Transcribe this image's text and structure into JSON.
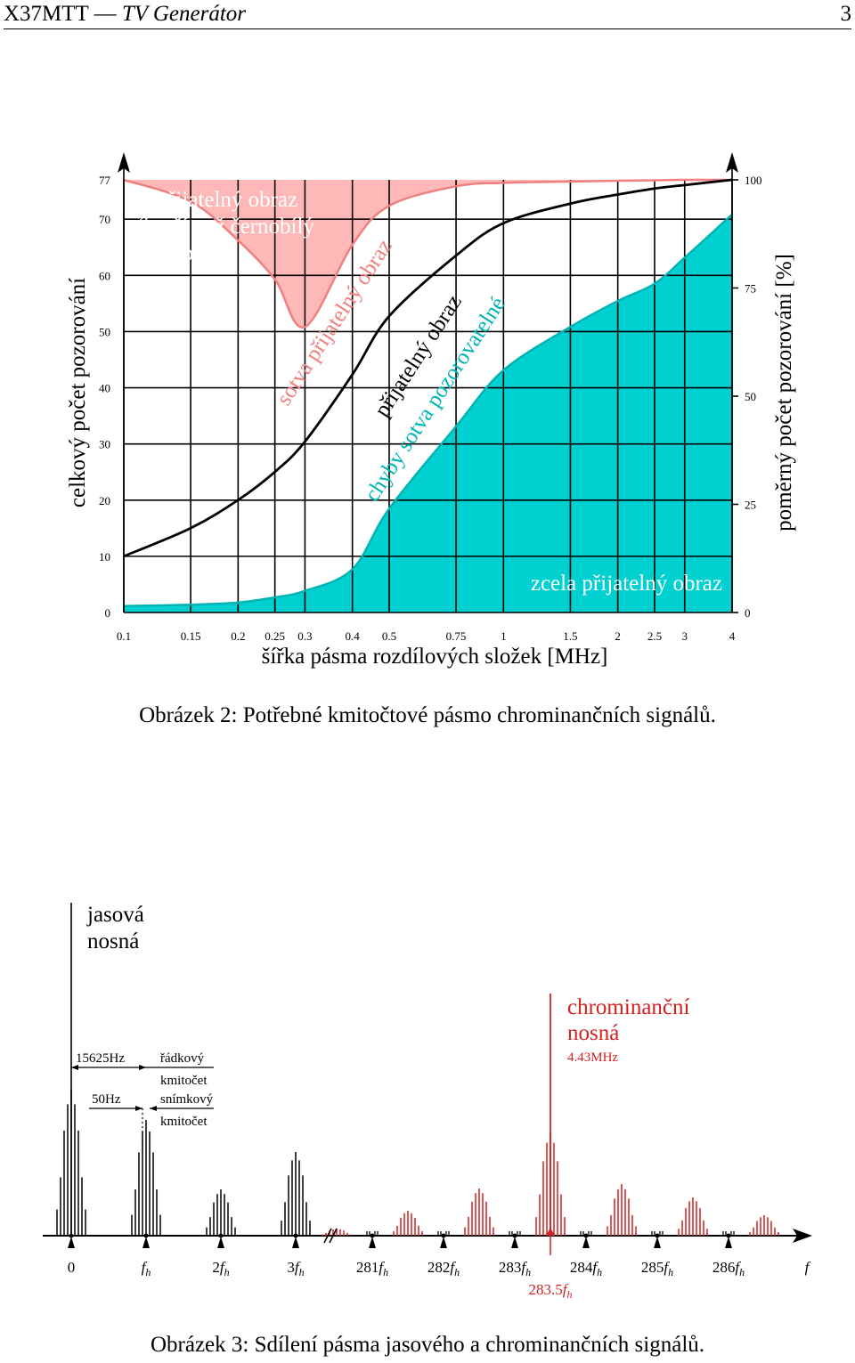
{
  "header": {
    "course": "X37MTT",
    "dash": "—",
    "title": "TV Generátor",
    "page_number": "3"
  },
  "figure2": {
    "caption": "Obrázek 2: Potřebné kmitočtové pásmo chrominančních signálů.",
    "region_labels": {
      "unacceptable_line1": "nepřijatelný obraz",
      "unacceptable_line2": "(horší než černobílý",
      "unacceptable_line3": "TV obraz)",
      "barely_acceptable": "sotva přijatelný obraz",
      "acceptable": "přijatelný obraz",
      "barely_noticeable": "chyby sotva pozorovatelné",
      "fully_acceptable": "zcela přijatelný obraz"
    },
    "colors": {
      "red_region": "#ffb8b8",
      "red_line": "#f08080",
      "cyan_region": "#00d0d0",
      "cyan_line": "#00b4b4"
    },
    "chart_data": {
      "type": "area",
      "xlabel": "šířka pásma rozdílových složek [MHz]",
      "ylabel_left": "celkový počet pozorování",
      "ylabel_right": "poměrný počet pozorování [%]",
      "x_scale": "log",
      "x_ticks": [
        "0.1",
        "0.15",
        "0.2",
        "0.25",
        "0.3",
        "0.4",
        "0.5",
        "0.75",
        "1",
        "1.5",
        "2",
        "2.5",
        "3",
        "4"
      ],
      "x_tick_values": [
        0.1,
        0.15,
        0.2,
        0.25,
        0.3,
        0.4,
        0.5,
        0.75,
        1,
        1.5,
        2,
        2.5,
        3,
        4
      ],
      "y_left_ticks": [
        "0",
        "10",
        "20",
        "30",
        "40",
        "50",
        "60",
        "70",
        "77"
      ],
      "y_left_tick_values": [
        0,
        10,
        20,
        30,
        40,
        50,
        60,
        70,
        77
      ],
      "y_right_ticks": [
        "0",
        "25",
        "50",
        "75",
        "100"
      ],
      "y_right_tick_values": [
        0,
        25,
        50,
        75,
        100
      ],
      "ylim_left": [
        0,
        77
      ],
      "ylim_right": [
        0,
        100
      ],
      "grid": true,
      "series": [
        {
          "name": "nepřijatelný obraz",
          "x": [
            0.1,
            0.15,
            0.2,
            0.25,
            0.3,
            0.4,
            0.5,
            0.75,
            1,
            1.5,
            2,
            2.5,
            3,
            4
          ],
          "y": [
            100,
            95,
            86,
            77,
            66,
            85,
            94,
            98.5,
            99.3,
            99.6,
            99.8,
            99.9,
            100,
            100
          ]
        },
        {
          "name": "přijatelný obraz",
          "x": [
            0.1,
            0.15,
            0.2,
            0.25,
            0.3,
            0.4,
            0.5,
            0.75,
            1,
            1.5,
            2,
            2.5,
            3,
            4
          ],
          "y": [
            13,
            19.5,
            26,
            32.5,
            39.5,
            55,
            68.5,
            82.5,
            90,
            94.5,
            96.6,
            98,
            98.8,
            100
          ]
        },
        {
          "name": "zcela přijatelný obraz",
          "x": [
            0.1,
            0.15,
            0.2,
            0.25,
            0.3,
            0.4,
            0.5,
            0.75,
            1,
            1.5,
            2,
            2.5,
            3,
            4
          ],
          "y": [
            1.5,
            1.8,
            2.3,
            3.5,
            5,
            10,
            24,
            43,
            56,
            66,
            72,
            76,
            82,
            92
          ]
        }
      ]
    }
  },
  "figure3": {
    "caption": "Obrázek 3: Sdílení pásma jasového a chrominančních signálů.",
    "luma_carrier": [
      "jasová",
      "nosná"
    ],
    "chroma_carrier": [
      "chrominanční",
      "nosná"
    ],
    "chroma_freq": "4.43MHz",
    "line_freq_value": "15625Hz",
    "line_freq_label": [
      "řádkový",
      "kmitočet"
    ],
    "frame_freq_value": "50Hz",
    "frame_freq_label": [
      "snímkový",
      "kmitočet"
    ],
    "axis_labels": [
      "0",
      "f",
      "2f",
      "3f",
      "281f",
      "282f",
      "283f",
      "284f",
      "285f",
      "286f"
    ],
    "axis_subscript": "h",
    "axis_end": "f",
    "chroma_center_label": "283.5f",
    "colors": {
      "luma": "#000000",
      "chroma": "#d42020"
    }
  }
}
